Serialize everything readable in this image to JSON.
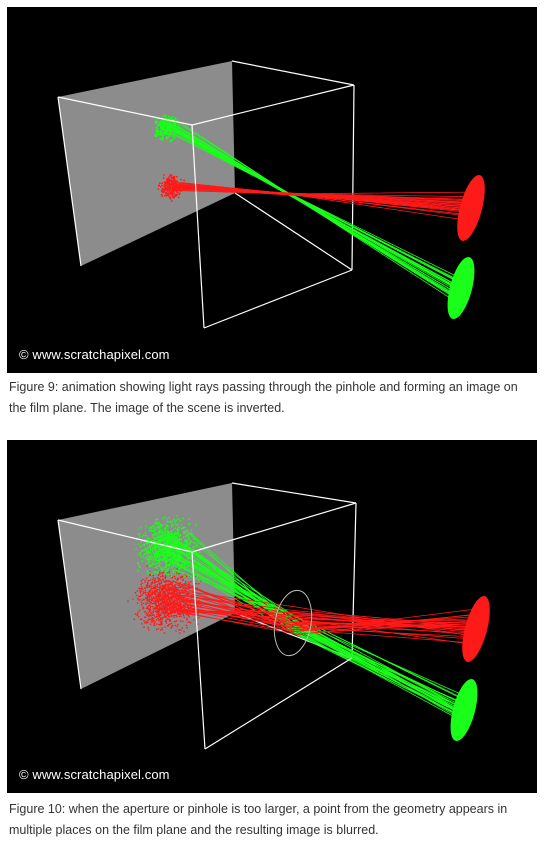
{
  "figures": [
    {
      "credit": "© www.scratchapixel.com",
      "caption": "Figure 9: animation showing light rays passing through the pinhole and forming an image on the film plane. The image of the scene is inverted.",
      "colors": {
        "background": "#000000",
        "film_plane": "#8c8c8c",
        "box_edges": "#ffffff",
        "red": "#ff1a1a",
        "green": "#1aff1a"
      },
      "aperture": "pinhole"
    },
    {
      "credit": "© www.scratchapixel.com",
      "caption": "Figure 10: when the aperture or pinhole is too larger, a point from the geometry appears in multiple places on the film plane and the resulting image is blurred.",
      "colors": {
        "background": "#000000",
        "film_plane": "#8c8c8c",
        "box_edges": "#ffffff",
        "red": "#ff1a1a",
        "green": "#1aff1a"
      },
      "aperture": "large"
    }
  ]
}
